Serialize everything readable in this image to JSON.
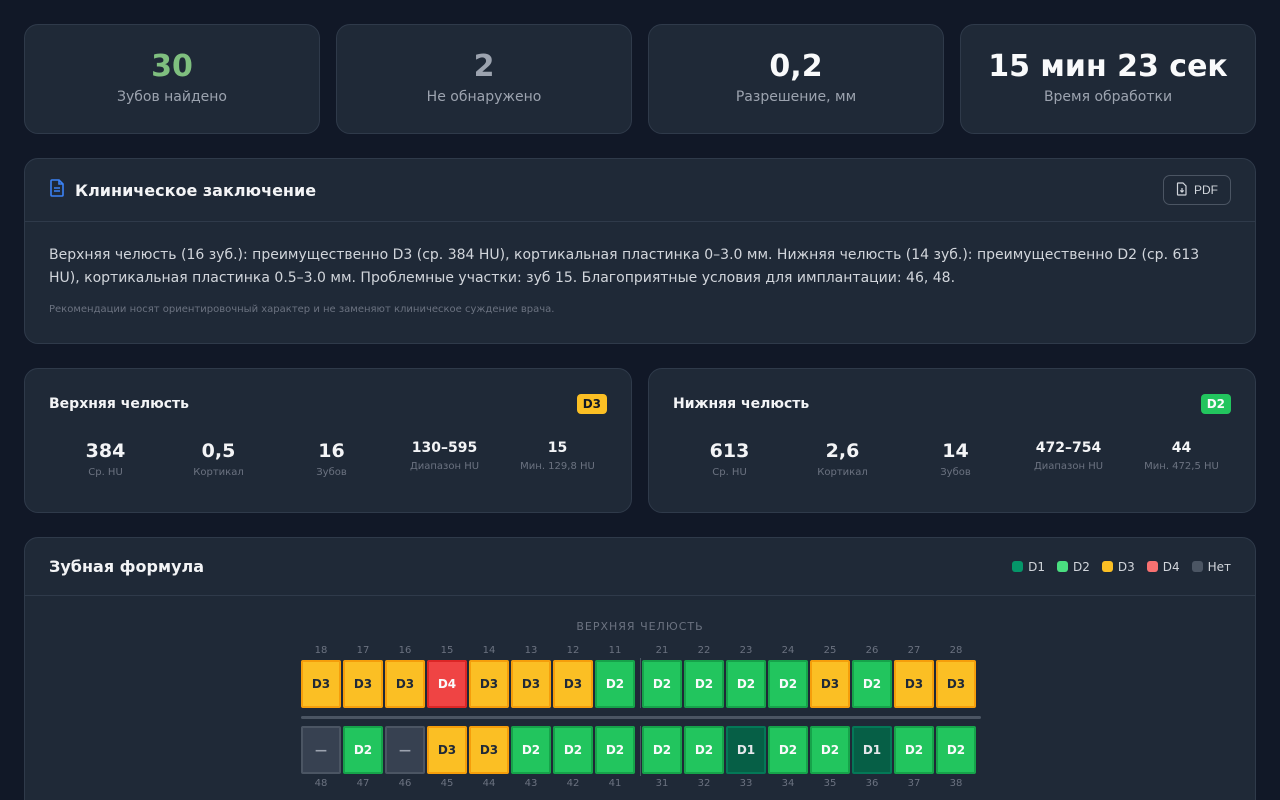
{
  "stats": [
    {
      "value": "30",
      "label": "Зубов найдено",
      "color": "#7fbf7f"
    },
    {
      "value": "2",
      "label": "Не обнаружено",
      "color": "#9ca3af"
    },
    {
      "value": "0,2",
      "label": "Разрешение, мм",
      "color": "#f9fafb"
    },
    {
      "value": "15 мин 23 сек",
      "label": "Время обработки",
      "color": "#f9fafb"
    }
  ],
  "clinical": {
    "title": "Клиническое заключение",
    "pdf_label": "PDF",
    "summary": "Верхняя челюсть (16 зуб.): преимущественно D3 (ср. 384 HU), кортикальная пластинка 0–3.0 мм. Нижняя челюсть (14 зуб.): преимущественно D2 (ср. 613 HU), кортикальная пластинка 0.5–3.0 мм. Проблемные участки: зуб 15. Благоприятные условия для имплантации: 46, 48.",
    "note": "Рекомендации носят ориентировочный характер и не заменяют клиническое суждение врача."
  },
  "upper_jaw": {
    "title": "Верхняя челюсть",
    "badge": "D3",
    "badge_color": "#fbbf24",
    "metrics": [
      {
        "value": "384",
        "label": "Ср. HU"
      },
      {
        "value": "0,5",
        "label": "Кортикал"
      },
      {
        "value": "16",
        "label": "Зубов"
      },
      {
        "value": "130–595",
        "label": "Диапазон HU"
      },
      {
        "value": "15",
        "label": "Мин. 129,8 HU"
      }
    ]
  },
  "lower_jaw": {
    "title": "Нижняя челюсть",
    "badge": "D2",
    "badge_color": "#22c55e",
    "metrics": [
      {
        "value": "613",
        "label": "Ср. HU"
      },
      {
        "value": "2,6",
        "label": "Кортикал"
      },
      {
        "value": "14",
        "label": "Зубов"
      },
      {
        "value": "472–754",
        "label": "Диапазон HU"
      },
      {
        "value": "44",
        "label": "Мин. 472,5 HU"
      }
    ]
  },
  "formula": {
    "title": "Зубная формула",
    "legend": [
      {
        "label": "D1",
        "color": "#059669"
      },
      {
        "label": "D2",
        "color": "#4ade80"
      },
      {
        "label": "D3",
        "color": "#fbbf24"
      },
      {
        "label": "D4",
        "color": "#f87171"
      },
      {
        "label": "Нет",
        "color": "#4b5563"
      }
    ],
    "upper_caption": "ВЕРХНЯЯ ЧЕЛЮСТЬ",
    "upper": [
      {
        "num": "18",
        "cls": "D3"
      },
      {
        "num": "17",
        "cls": "D3"
      },
      {
        "num": "16",
        "cls": "D3"
      },
      {
        "num": "15",
        "cls": "D4"
      },
      {
        "num": "14",
        "cls": "D3"
      },
      {
        "num": "13",
        "cls": "D3"
      },
      {
        "num": "12",
        "cls": "D3"
      },
      {
        "num": "11",
        "cls": "D2"
      },
      {
        "num": "21",
        "cls": "D2"
      },
      {
        "num": "22",
        "cls": "D2"
      },
      {
        "num": "23",
        "cls": "D2"
      },
      {
        "num": "24",
        "cls": "D2"
      },
      {
        "num": "25",
        "cls": "D3"
      },
      {
        "num": "26",
        "cls": "D2"
      },
      {
        "num": "27",
        "cls": "D3"
      },
      {
        "num": "28",
        "cls": "D3"
      }
    ],
    "lower": [
      {
        "num": "48",
        "cls": "—"
      },
      {
        "num": "47",
        "cls": "D2"
      },
      {
        "num": "46",
        "cls": "—"
      },
      {
        "num": "45",
        "cls": "D3"
      },
      {
        "num": "44",
        "cls": "D3"
      },
      {
        "num": "43",
        "cls": "D2"
      },
      {
        "num": "42",
        "cls": "D2"
      },
      {
        "num": "41",
        "cls": "D2"
      },
      {
        "num": "31",
        "cls": "D2"
      },
      {
        "num": "32",
        "cls": "D2"
      },
      {
        "num": "33",
        "cls": "D1"
      },
      {
        "num": "34",
        "cls": "D2"
      },
      {
        "num": "35",
        "cls": "D2"
      },
      {
        "num": "36",
        "cls": "D1"
      },
      {
        "num": "37",
        "cls": "D2"
      },
      {
        "num": "38",
        "cls": "D2"
      }
    ]
  }
}
